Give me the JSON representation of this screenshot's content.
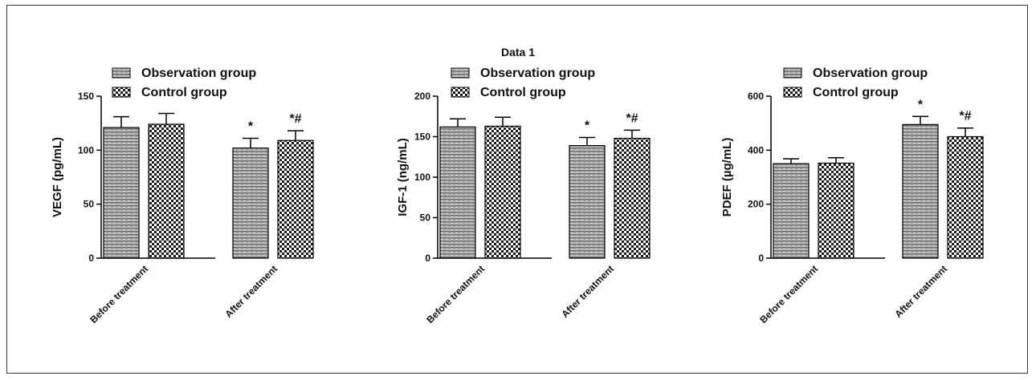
{
  "figure": {
    "title": "Data 1",
    "legend": {
      "series": [
        "Observation group",
        "Control group"
      ]
    }
  },
  "chart_data": [
    {
      "type": "bar",
      "categories": [
        "Before treatment",
        "After treatment"
      ],
      "series": [
        {
          "name": "Observation group",
          "values": [
            121,
            102
          ],
          "errors": [
            10,
            9
          ]
        },
        {
          "name": "Control group",
          "values": [
            124,
            109
          ],
          "errors": [
            10,
            9
          ]
        }
      ],
      "annotations": [
        {
          "category": "After treatment",
          "series": "Observation group",
          "text": "*"
        },
        {
          "category": "After treatment",
          "series": "Control group",
          "text": "*#"
        }
      ],
      "ylabel": "VEGF (pg/mL)",
      "ylim": [
        0,
        150
      ],
      "yticks": [
        0,
        50,
        100,
        150
      ],
      "grid": false,
      "legend_position": "top-left"
    },
    {
      "type": "bar",
      "categories": [
        "Before treatment",
        "After treatment"
      ],
      "series": [
        {
          "name": "Observation group",
          "values": [
            162,
            139
          ],
          "errors": [
            10,
            10
          ]
        },
        {
          "name": "Control group",
          "values": [
            163,
            148
          ],
          "errors": [
            11,
            10
          ]
        }
      ],
      "annotations": [
        {
          "category": "After treatment",
          "series": "Observation group",
          "text": "*"
        },
        {
          "category": "After treatment",
          "series": "Control group",
          "text": "*#"
        }
      ],
      "ylabel": "IGF-1 (ng/mL)",
      "ylim": [
        0,
        200
      ],
      "yticks": [
        0,
        50,
        100,
        150,
        200
      ],
      "grid": false,
      "legend_position": "top-left"
    },
    {
      "type": "bar",
      "categories": [
        "Before treatment",
        "After treatment"
      ],
      "series": [
        {
          "name": "Observation group",
          "values": [
            350,
            495
          ],
          "errors": [
            18,
            30
          ]
        },
        {
          "name": "Control group",
          "values": [
            352,
            450
          ],
          "errors": [
            20,
            32
          ]
        }
      ],
      "annotations": [
        {
          "category": "After treatment",
          "series": "Observation group",
          "text": "*"
        },
        {
          "category": "After treatment",
          "series": "Control group",
          "text": "*#"
        }
      ],
      "ylabel": "PDEF (µg/mL)",
      "ylim": [
        0,
        600
      ],
      "yticks": [
        0,
        200,
        400,
        600
      ],
      "grid": false,
      "legend_position": "top-left"
    }
  ]
}
